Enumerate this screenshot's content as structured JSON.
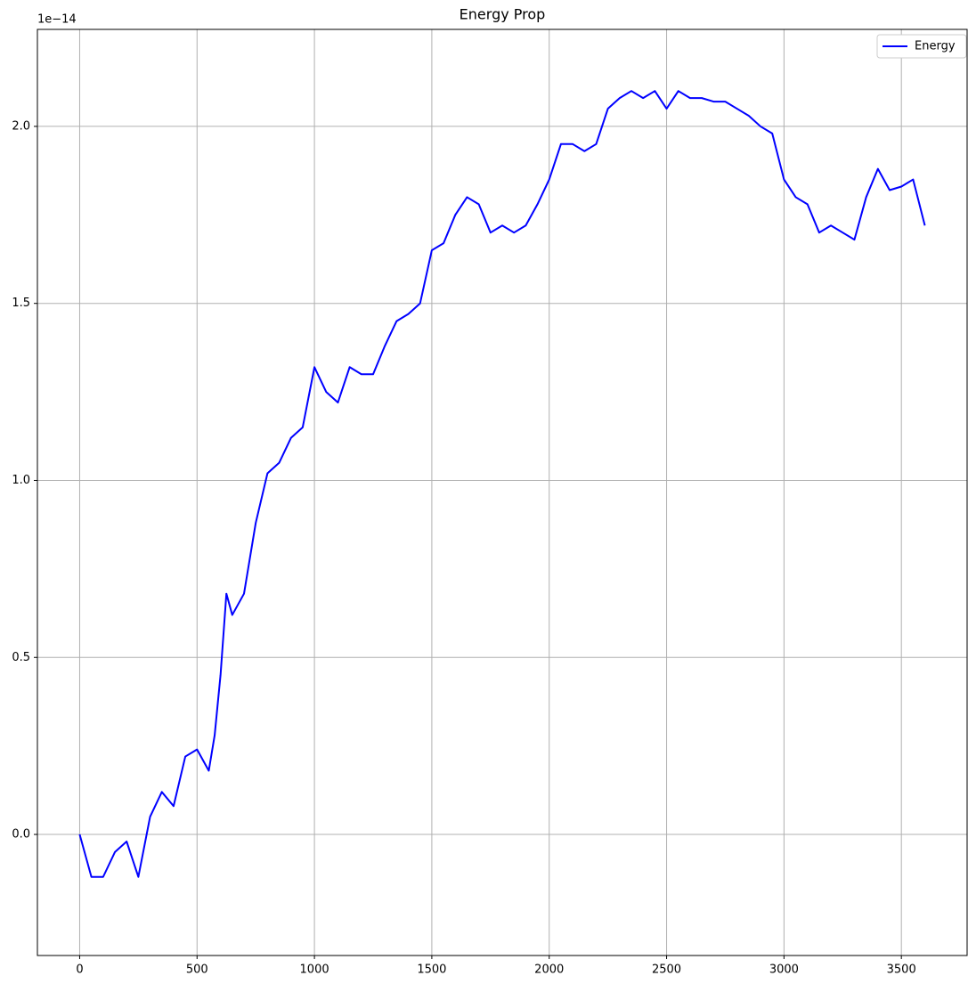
{
  "chart_data": {
    "type": "line",
    "title": "Energy Prop",
    "y_offset_text": "1e−14",
    "x": [
      0,
      50,
      100,
      150,
      200,
      250,
      300,
      350,
      400,
      450,
      500,
      550,
      575,
      600,
      625,
      650,
      700,
      750,
      800,
      850,
      900,
      950,
      1000,
      1050,
      1100,
      1150,
      1200,
      1250,
      1300,
      1350,
      1400,
      1450,
      1500,
      1550,
      1600,
      1650,
      1700,
      1750,
      1800,
      1850,
      1900,
      1950,
      2000,
      2050,
      2100,
      2150,
      2200,
      2250,
      2300,
      2350,
      2400,
      2450,
      2500,
      2550,
      2600,
      2650,
      2700,
      2750,
      2800,
      2850,
      2900,
      2950,
      3000,
      3050,
      3100,
      3150,
      3200,
      3250,
      3300,
      3350,
      3400,
      3450,
      3500,
      3550,
      3600
    ],
    "series": [
      {
        "name": "Energy",
        "color": "#0000ff",
        "values": [
          0.0,
          -0.12,
          -0.12,
          -0.05,
          -0.02,
          -0.12,
          0.05,
          0.12,
          0.08,
          0.22,
          0.24,
          0.18,
          0.28,
          0.45,
          0.68,
          0.62,
          0.68,
          0.88,
          1.02,
          1.05,
          1.12,
          1.15,
          1.32,
          1.25,
          1.22,
          1.32,
          1.3,
          1.3,
          1.38,
          1.45,
          1.47,
          1.5,
          1.65,
          1.67,
          1.75,
          1.8,
          1.78,
          1.7,
          1.72,
          1.7,
          1.72,
          1.78,
          1.85,
          1.95,
          1.95,
          1.93,
          1.95,
          2.05,
          2.08,
          2.1,
          2.08,
          2.1,
          2.05,
          2.1,
          2.08,
          2.08,
          2.07,
          2.07,
          2.05,
          2.03,
          2.0,
          1.98,
          1.85,
          1.8,
          1.78,
          1.7,
          1.72,
          1.7,
          1.68,
          1.8,
          1.88,
          1.82,
          1.83,
          1.85,
          1.72
        ]
      }
    ],
    "xlim": [
      -180,
      3780
    ],
    "xticks": [
      0,
      500,
      1000,
      1500,
      2000,
      2500,
      3000,
      3500
    ],
    "ylim": [
      -0.342,
      2.274
    ],
    "yticks": [
      {
        "value": 0,
        "label": "0.0"
      },
      0.5,
      {
        "value": 1,
        "label": "1.0"
      },
      1.5,
      {
        "value": 2,
        "label": "2.0"
      }
    ],
    "grid": true,
    "legend": "upper right"
  }
}
